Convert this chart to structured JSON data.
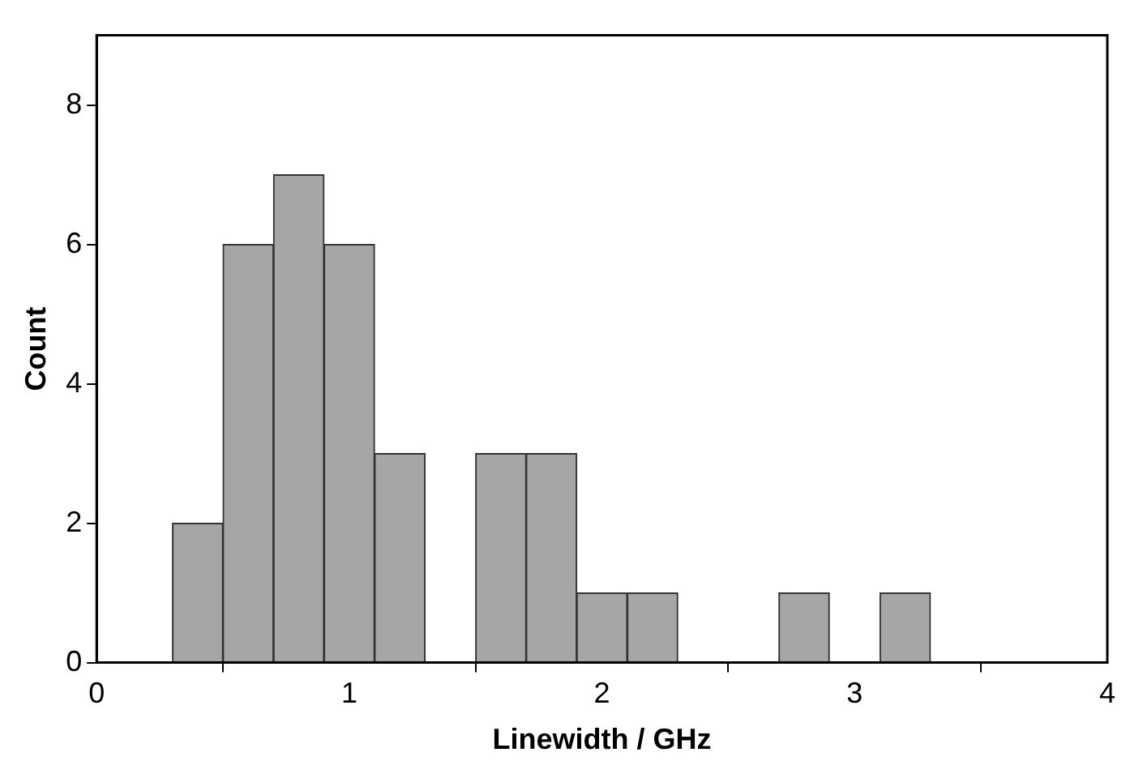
{
  "chart_data": {
    "type": "histogram",
    "xlabel": "Linewidth / GHz",
    "ylabel": "Count",
    "bins": [
      0.3,
      0.5,
      0.7,
      0.9,
      1.1,
      1.3,
      1.5,
      1.7,
      1.9,
      2.1,
      2.3,
      2.5,
      2.7,
      2.9,
      3.1,
      3.3
    ],
    "values": [
      2,
      6,
      7,
      6,
      3,
      0,
      3,
      3,
      1,
      1,
      0,
      0,
      1,
      0,
      1
    ],
    "color": "#a6a6a6",
    "xlim": [
      0,
      4
    ],
    "xticks": [
      0,
      1,
      2,
      3,
      4
    ],
    "ylim": [
      0,
      9
    ],
    "yticks": [
      0,
      2,
      4,
      6,
      8
    ],
    "grid": false
  }
}
